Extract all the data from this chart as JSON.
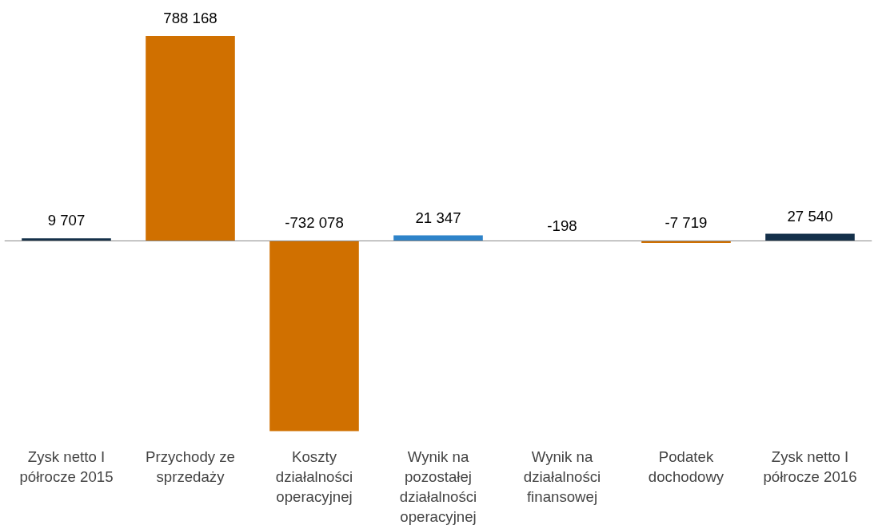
{
  "chart_data": {
    "type": "bar",
    "categories": [
      "Zysk netto I półrocze 2015",
      "Przychody ze sprzedaży",
      "Koszty działalności operacyjnej",
      "Wynik na pozostałej działalności operacyjnej",
      "Wynik na działalności finansowej",
      "Podatek dochodowy",
      "Zysk netto I półrocze 2016"
    ],
    "values": [
      9707,
      788168,
      -732078,
      21347,
      -198,
      -7719,
      27540
    ],
    "colors": [
      "#14304a",
      "#d07000",
      "#d07000",
      "#2e83c9",
      "#2e83c9",
      "#d07000",
      "#14304a"
    ],
    "data_labels": true,
    "grid": false
  }
}
